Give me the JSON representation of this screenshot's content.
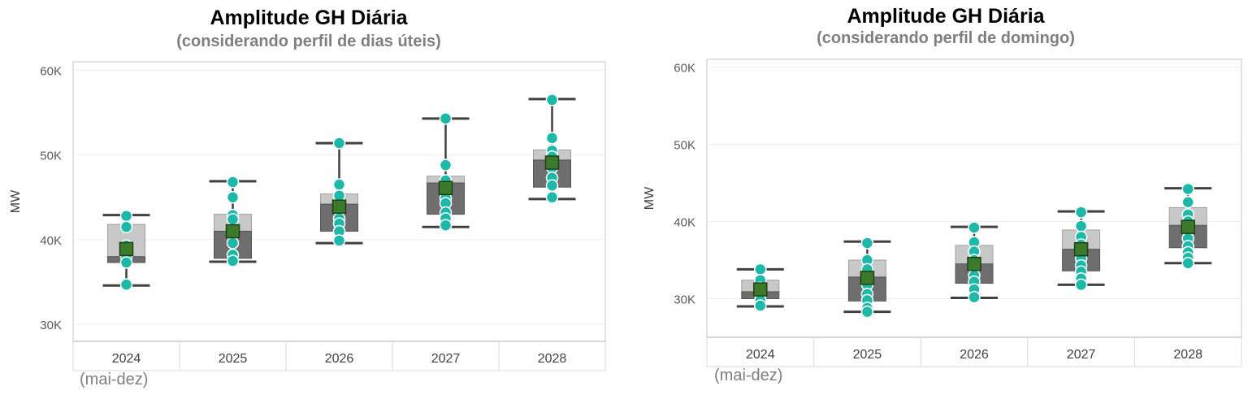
{
  "chart_data": [
    {
      "type": "box",
      "title": "Amplitude GH Diária",
      "subtitle": "(considerando perfil de dias úteis)",
      "ylabel": "MW",
      "ylim": [
        28000,
        61000
      ],
      "yticks": [
        30000,
        40000,
        50000,
        60000
      ],
      "ytick_labels": [
        "30K",
        "40K",
        "50K",
        "60K"
      ],
      "categories": [
        "2024",
        "2025",
        "2026",
        "2027",
        "2028"
      ],
      "category_note": "(mai-dez)",
      "boxes": [
        {
          "min": 34600,
          "q1": 37300,
          "median": 38000,
          "q3": 41800,
          "max": 42900,
          "mean": 38900,
          "points": [
            42800,
            41500,
            39300,
            38000,
            37300,
            34700
          ]
        },
        {
          "min": 37400,
          "q1": 37800,
          "median": 41000,
          "q3": 43000,
          "max": 46900,
          "mean": 41000,
          "points": [
            46800,
            45000,
            42900,
            42400,
            41000,
            39600,
            38200,
            37500
          ]
        },
        {
          "min": 39600,
          "q1": 41000,
          "median": 44200,
          "q3": 45400,
          "max": 51400,
          "mean": 43900,
          "points": [
            51400,
            46500,
            45200,
            44000,
            42500,
            41900,
            41000,
            39900
          ]
        },
        {
          "min": 41500,
          "q1": 43000,
          "median": 46700,
          "q3": 47500,
          "max": 54300,
          "mean": 46100,
          "points": [
            54300,
            48800,
            47000,
            45800,
            44900,
            44300,
            43200,
            42500,
            41700
          ]
        },
        {
          "min": 44800,
          "q1": 46200,
          "median": 49400,
          "q3": 50600,
          "max": 56600,
          "mean": 49100,
          "points": [
            56500,
            52000,
            50500,
            49800,
            48500,
            47300,
            46400,
            45000
          ]
        }
      ],
      "colors": {
        "upper_box": "#c8c8c8",
        "lower_box": "#6e6e6e",
        "points": "#1db8a8",
        "mean": "#3a7a2a",
        "whisker": "#404040"
      }
    },
    {
      "type": "box",
      "title": "Amplitude GH Diária",
      "subtitle": "(considerando perfil de domingo)",
      "ylabel": "MW",
      "ylim": [
        25000,
        61000
      ],
      "yticks": [
        30000,
        40000,
        50000,
        60000
      ],
      "ytick_labels": [
        "30K",
        "40K",
        "50K",
        "60K"
      ],
      "categories": [
        "2024",
        "2025",
        "2026",
        "2027",
        "2028"
      ],
      "category_note": "(mai-dez)",
      "boxes": [
        {
          "min": 29000,
          "q1": 30000,
          "median": 30900,
          "q3": 32400,
          "max": 33800,
          "mean": 31200,
          "points": [
            33800,
            32400,
            31400,
            30600,
            29800,
            29100
          ]
        },
        {
          "min": 28300,
          "q1": 29700,
          "median": 32800,
          "q3": 35000,
          "max": 37400,
          "mean": 32700,
          "points": [
            37200,
            35000,
            33800,
            32600,
            31800,
            30600,
            29800,
            28800,
            28300
          ]
        },
        {
          "min": 30100,
          "q1": 32000,
          "median": 34500,
          "q3": 36900,
          "max": 39300,
          "mean": 34500,
          "points": [
            39200,
            37300,
            36100,
            35000,
            34000,
            33000,
            32200,
            31200,
            30200
          ]
        },
        {
          "min": 31800,
          "q1": 33600,
          "median": 36400,
          "q3": 38900,
          "max": 41300,
          "mean": 36400,
          "points": [
            41200,
            39400,
            38000,
            37000,
            36100,
            35200,
            34300,
            33500,
            32600,
            31800
          ]
        },
        {
          "min": 34600,
          "q1": 36600,
          "median": 39500,
          "q3": 41800,
          "max": 44300,
          "mean": 39300,
          "points": [
            44200,
            42500,
            40900,
            40000,
            39300,
            37800,
            36800,
            36000,
            35300,
            34600
          ]
        }
      ],
      "colors": {
        "upper_box": "#c8c8c8",
        "lower_box": "#6e6e6e",
        "points": "#1db8a8",
        "mean": "#3a7a2a",
        "whisker": "#404040"
      }
    }
  ]
}
